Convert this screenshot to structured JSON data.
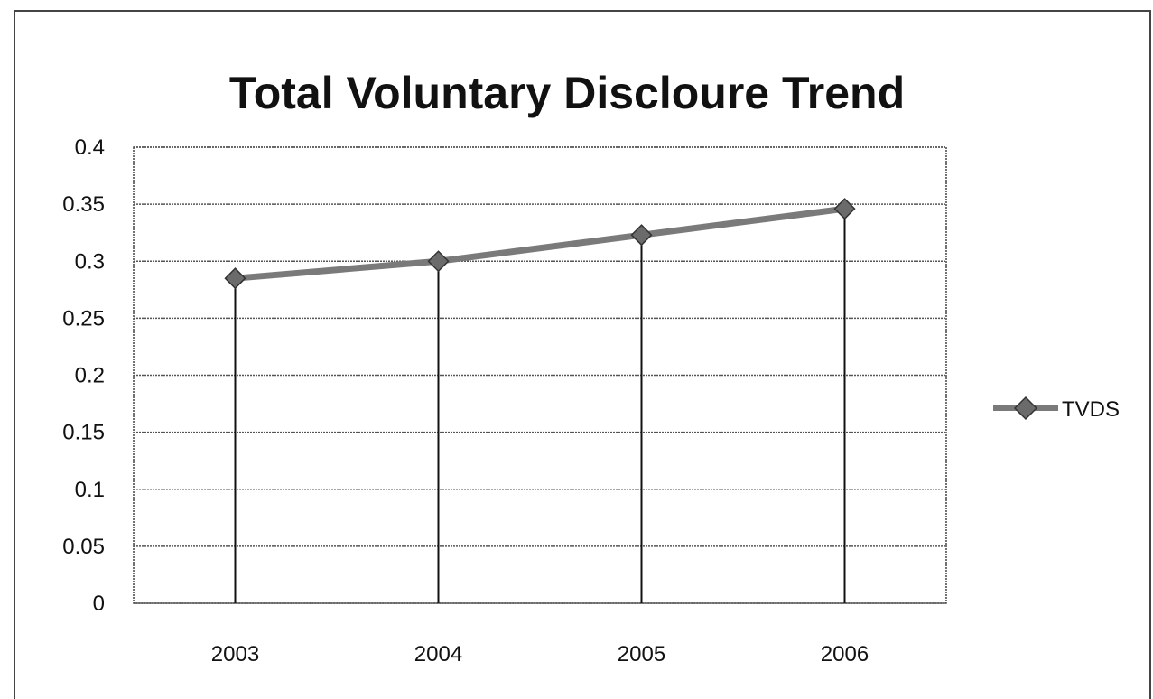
{
  "chart_data": {
    "type": "line",
    "title": "Total Voluntary Discloure Trend",
    "xlabel": "",
    "ylabel": "",
    "categories": [
      "2003",
      "2004",
      "2005",
      "2006"
    ],
    "series": [
      {
        "name": "TVDS",
        "values": [
          0.285,
          0.3,
          0.323,
          0.346
        ]
      }
    ],
    "ylim": [
      0,
      0.4
    ],
    "y_ticks": [
      "0",
      "0.05",
      "0.1",
      "0.15",
      "0.2",
      "0.25",
      "0.3",
      "0.35",
      "0.4"
    ],
    "y_tick_values": [
      0,
      0.05,
      0.1,
      0.15,
      0.2,
      0.25,
      0.3,
      0.35,
      0.4
    ],
    "grid": true,
    "drop_lines": true,
    "legend_position": "right",
    "colors": {
      "line": "#7a7a7a",
      "marker": "#6b6b6b",
      "marker_stroke": "#333333",
      "grid": "#555555",
      "drop_line": "#111111",
      "frame": "#444444"
    }
  }
}
